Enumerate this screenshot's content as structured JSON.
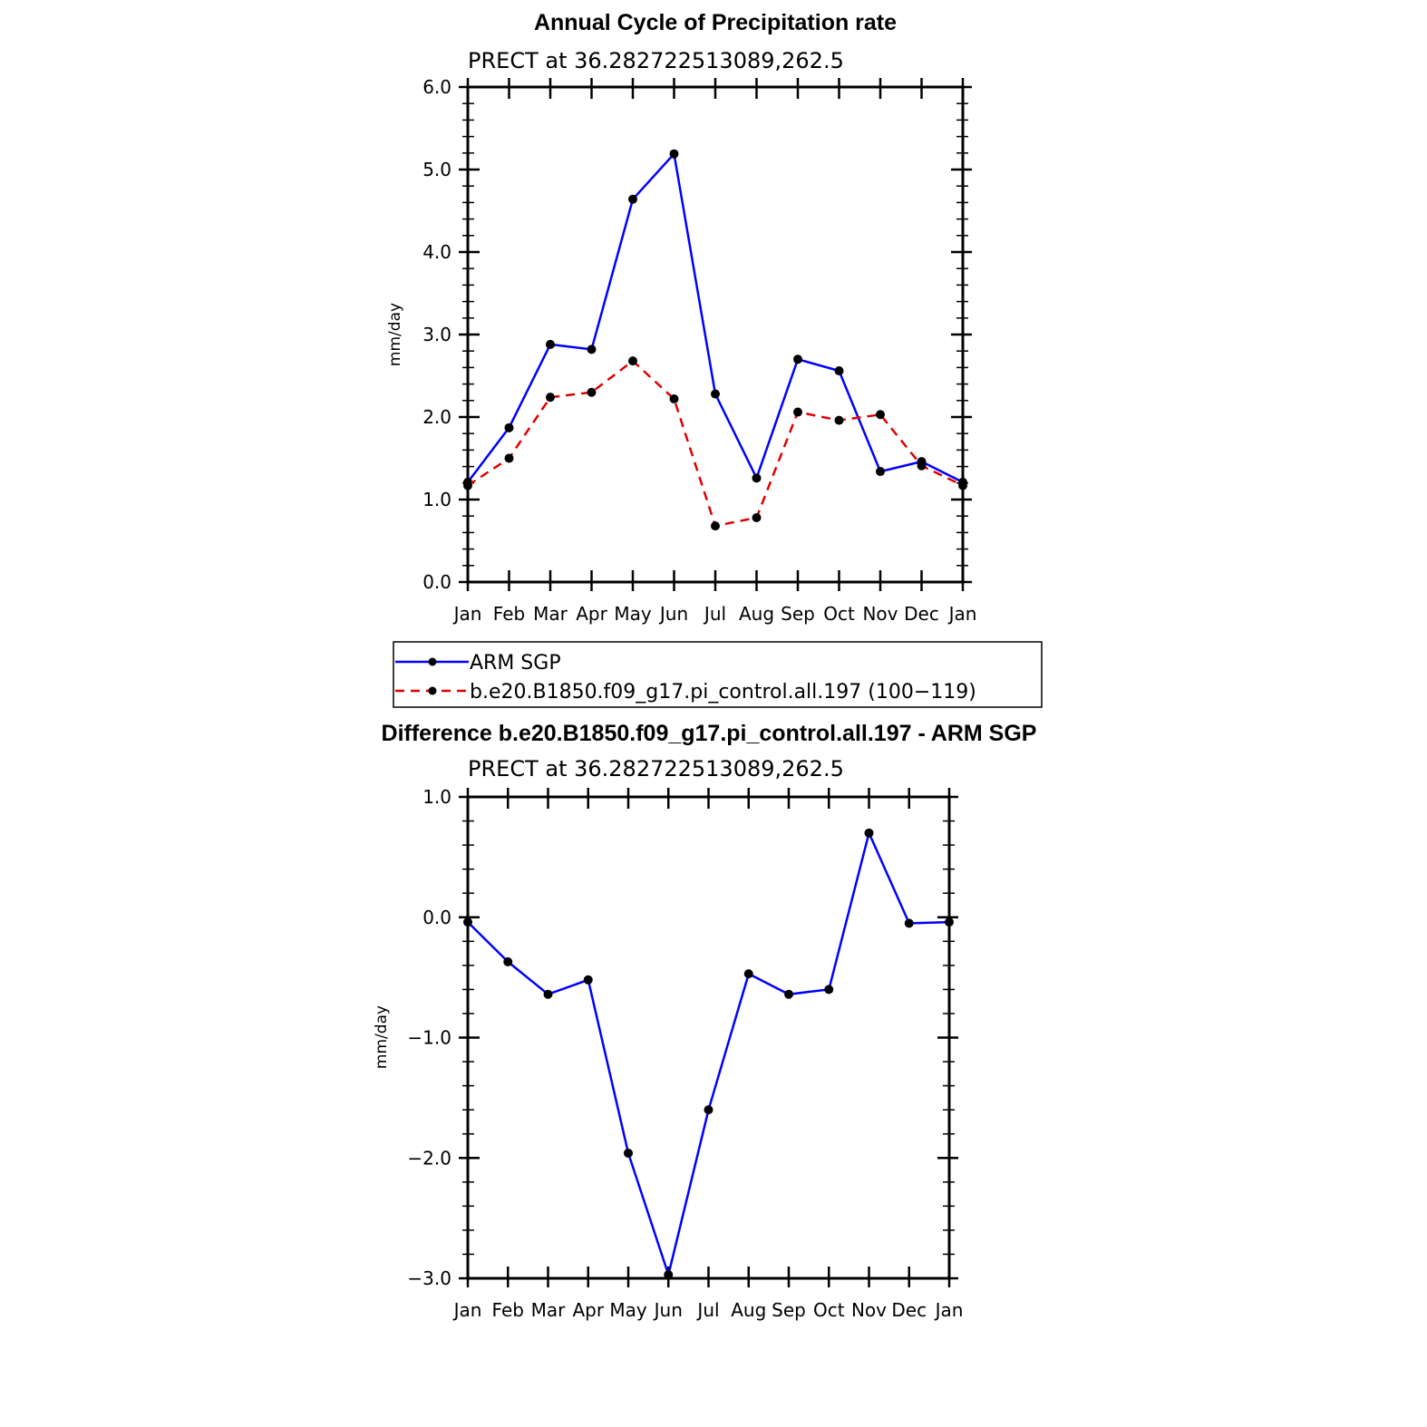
{
  "chart_data": [
    {
      "type": "line",
      "title": "Annual Cycle of Precipitation rate",
      "subtitle": "PRECT at 36.282722513089,262.5",
      "ylabel": "mm/day",
      "ylim": [
        0.0,
        6.0
      ],
      "yticks": [
        "0.0",
        "1.0",
        "2.0",
        "3.0",
        "4.0",
        "5.0",
        "6.0"
      ],
      "categories": [
        "Jan",
        "Feb",
        "Mar",
        "Apr",
        "May",
        "Jun",
        "Jul",
        "Aug",
        "Sep",
        "Oct",
        "Nov",
        "Dec",
        "Jan"
      ],
      "grid": false,
      "legend_position": "below",
      "series": [
        {
          "name": "ARM SGP",
          "color": "#0000ff",
          "dashed": false,
          "values": [
            1.21,
            1.87,
            2.88,
            2.82,
            4.64,
            5.19,
            2.28,
            1.26,
            2.7,
            2.56,
            1.34,
            1.46,
            1.21
          ]
        },
        {
          "name": "b.e20.B1850.f09_g17.pi_control.all.197 (100−119)",
          "color": "#e00000",
          "dashed": true,
          "values": [
            1.17,
            1.5,
            2.24,
            2.3,
            2.68,
            2.22,
            0.68,
            0.78,
            2.06,
            1.96,
            2.03,
            1.41,
            1.17
          ]
        }
      ]
    },
    {
      "type": "line",
      "title": "Difference b.e20.B1850.f09_g17.pi_control.all.197 - ARM SGP",
      "subtitle": "PRECT at 36.282722513089,262.5",
      "ylabel": "mm/day",
      "ylim": [
        -3.0,
        1.0
      ],
      "yticks": [
        "−3.0",
        "−2.0",
        "−1.0",
        "0.0",
        "1.0"
      ],
      "categories": [
        "Jan",
        "Feb",
        "Mar",
        "Apr",
        "May",
        "Jun",
        "Jul",
        "Aug",
        "Sep",
        "Oct",
        "Nov",
        "Dec",
        "Jan"
      ],
      "grid": false,
      "series": [
        {
          "color": "#0000ff",
          "dashed": false,
          "values": [
            -0.04,
            -0.37,
            -0.64,
            -0.52,
            -1.96,
            -2.97,
            -1.6,
            -0.47,
            -0.64,
            -0.6,
            0.7,
            -0.05,
            -0.04
          ]
        }
      ]
    }
  ]
}
